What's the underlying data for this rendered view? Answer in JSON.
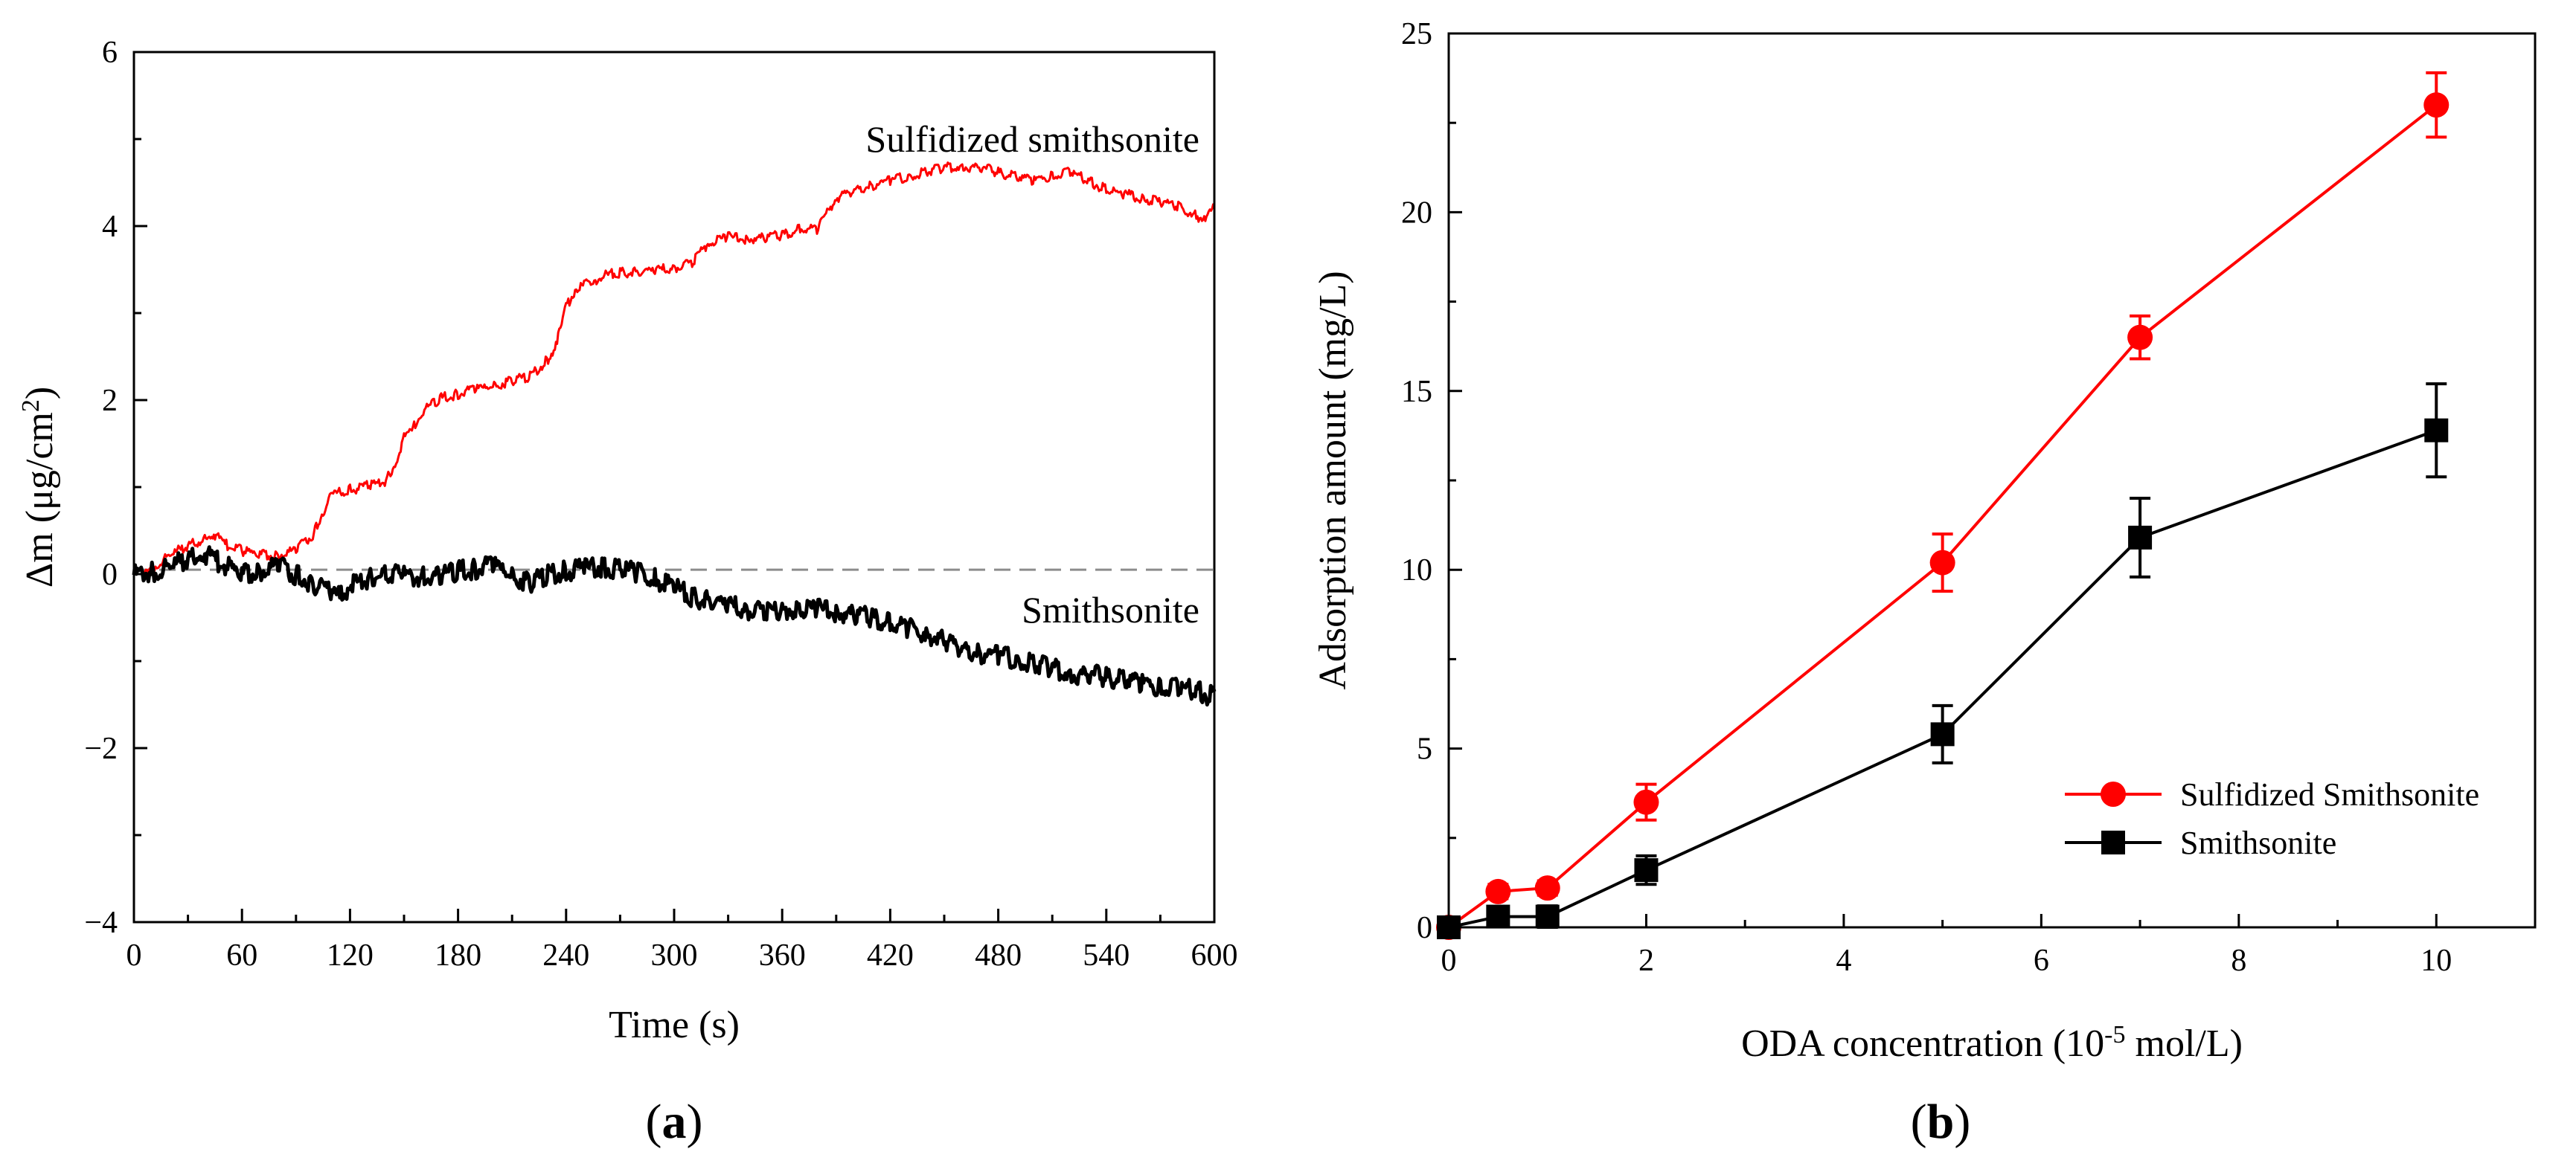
{
  "chart_data": [
    {
      "panel": "(a)",
      "panel_letter": "a",
      "type": "line",
      "xlabel": "Time (s)",
      "ylabel": "Δm (μg/cm²)",
      "ylabel_parts": {
        "main": "Δm (μg/cm",
        "sup": "2",
        "end": ")"
      },
      "xlim": [
        0,
        600
      ],
      "ylim": [
        -4,
        6
      ],
      "xticks": [
        0,
        60,
        120,
        180,
        240,
        300,
        360,
        420,
        480,
        540,
        600
      ],
      "yticks": [
        -4,
        -2,
        0,
        2,
        4,
        6
      ],
      "ytick_labels": [
        "−4",
        "−2",
        "0",
        "2",
        "4",
        "6"
      ],
      "reference_line": {
        "y": 0.05,
        "style": "dashed",
        "color": "#8c8c8c"
      },
      "series": [
        {
          "name": "Sulfidized smithsonite",
          "label": "Sulfidized smithsonite",
          "color": "#ff0000",
          "x": [
            0,
            10,
            20,
            30,
            40,
            45,
            50,
            60,
            70,
            80,
            90,
            100,
            105,
            110,
            120,
            130,
            140,
            145,
            150,
            155,
            160,
            170,
            180,
            190,
            200,
            210,
            220,
            230,
            235,
            240,
            245,
            250,
            255,
            260,
            270,
            280,
            290,
            300,
            310,
            315,
            320,
            330,
            340,
            350,
            360,
            370,
            380,
            385,
            390,
            400,
            410,
            420,
            430,
            440,
            450,
            460,
            470,
            480,
            490,
            500,
            510,
            520,
            530,
            540,
            550,
            560,
            570,
            580,
            590,
            595,
            600
          ],
          "y": [
            0.05,
            0.1,
            0.25,
            0.35,
            0.45,
            0.48,
            0.38,
            0.3,
            0.25,
            0.25,
            0.3,
            0.5,
            0.75,
            0.95,
            1.0,
            1.05,
            1.1,
            1.3,
            1.6,
            1.7,
            1.9,
            2.05,
            2.1,
            2.15,
            2.2,
            2.25,
            2.3,
            2.5,
            2.7,
            3.1,
            3.3,
            3.35,
            3.4,
            3.45,
            3.5,
            3.5,
            3.52,
            3.55,
            3.6,
            3.75,
            3.85,
            3.9,
            3.88,
            3.9,
            3.92,
            4.0,
            4.0,
            4.2,
            4.35,
            4.45,
            4.5,
            4.55,
            4.6,
            4.65,
            4.7,
            4.72,
            4.7,
            4.65,
            4.6,
            4.55,
            4.62,
            4.65,
            4.55,
            4.45,
            4.4,
            4.35,
            4.3,
            4.25,
            4.15,
            4.1,
            4.25
          ]
        },
        {
          "name": "Smithsonite",
          "label": "Smithsonite",
          "color": "#000000",
          "x": [
            0,
            10,
            20,
            30,
            35,
            40,
            45,
            50,
            60,
            70,
            80,
            90,
            100,
            110,
            115,
            120,
            130,
            140,
            150,
            160,
            170,
            180,
            190,
            200,
            210,
            220,
            230,
            240,
            250,
            260,
            270,
            280,
            290,
            300,
            310,
            320,
            330,
            340,
            350,
            360,
            370,
            380,
            390,
            400,
            410,
            420,
            430,
            440,
            450,
            460,
            470,
            480,
            490,
            500,
            510,
            520,
            530,
            540,
            550,
            560,
            570,
            580,
            590,
            600
          ],
          "y": [
            0.05,
            0.08,
            0.15,
            0.22,
            0.26,
            0.28,
            0.22,
            0.18,
            0.05,
            0.1,
            0.15,
            0.05,
            -0.05,
            -0.15,
            -0.2,
            -0.05,
            0.0,
            0.08,
            0.05,
            0.02,
            0.05,
            0.1,
            0.12,
            0.15,
            0.05,
            -0.05,
            0.05,
            0.1,
            0.12,
            0.15,
            0.12,
            0.08,
            0.0,
            -0.1,
            -0.2,
            -0.25,
            -0.3,
            -0.35,
            -0.38,
            -0.35,
            -0.33,
            -0.35,
            -0.38,
            -0.4,
            -0.45,
            -0.5,
            -0.55,
            -0.62,
            -0.7,
            -0.78,
            -0.85,
            -0.88,
            -0.92,
            -0.98,
            -1.02,
            -1.08,
            -1.1,
            -1.12,
            -1.15,
            -1.2,
            -1.22,
            -1.25,
            -1.28,
            -1.35
          ]
        }
      ]
    },
    {
      "panel": "(b)",
      "panel_letter": "b",
      "type": "line",
      "markers": true,
      "error_bars": true,
      "xlabel": "ODA concentration (10⁻⁵ mol/L)",
      "xlabel_parts": {
        "main": "ODA concentration (10",
        "sup": "-5",
        "end": " mol/L)"
      },
      "ylabel": "Adsorption amount (mg/L)",
      "xlim": [
        0,
        11
      ],
      "ylim": [
        0,
        25
      ],
      "xticks": [
        0,
        2,
        4,
        6,
        8,
        10
      ],
      "yticks": [
        0,
        5,
        10,
        15,
        20,
        25
      ],
      "legend_position": "bottom-right",
      "series": [
        {
          "name": "Sulfidized Smithsonite",
          "label": "Sulfidized Smithsonite",
          "color": "#ff0000",
          "marker": "circle",
          "x": [
            0,
            0.5,
            1,
            2,
            5,
            7,
            10
          ],
          "y": [
            0,
            1.0,
            1.1,
            3.5,
            10.2,
            16.5,
            23.0
          ],
          "error": [
            0,
            0.2,
            0.2,
            0.5,
            0.8,
            0.6,
            0.9
          ]
        },
        {
          "name": "Smithsonite",
          "label": "Smithsonite",
          "color": "#000000",
          "marker": "square",
          "x": [
            0,
            0.5,
            1,
            2,
            5,
            7,
            10
          ],
          "y": [
            0,
            0.3,
            0.3,
            1.6,
            5.4,
            10.9,
            13.9
          ],
          "error": [
            0,
            0.2,
            0.3,
            0.4,
            0.8,
            1.1,
            1.3
          ]
        }
      ]
    }
  ]
}
